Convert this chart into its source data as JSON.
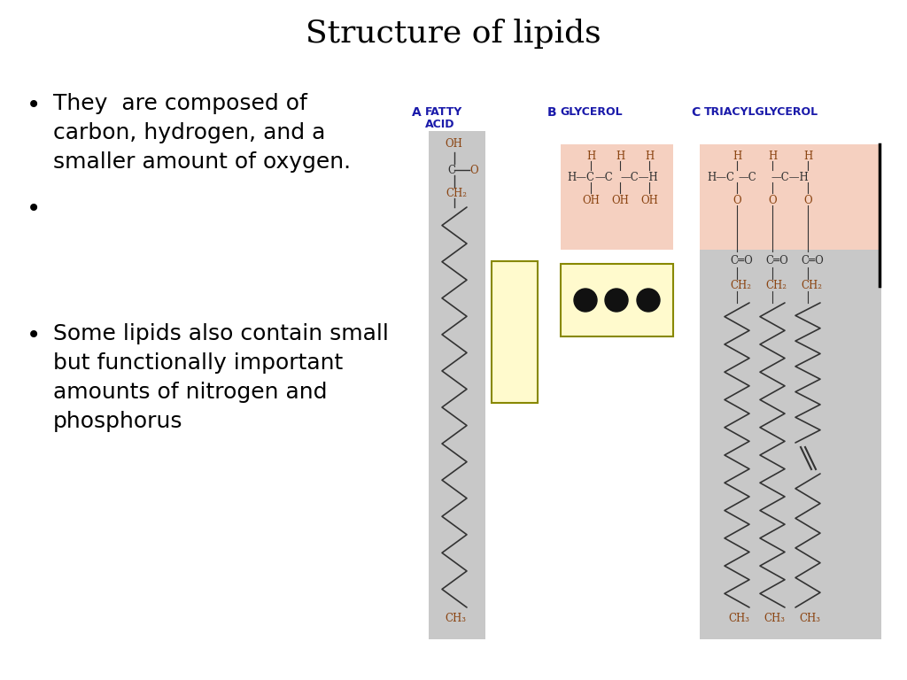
{
  "title": "Structure of lipids",
  "title_fontsize": 26,
  "background_color": "#ffffff",
  "label_color": "#1a1aaa",
  "brown_color": "#8b4513",
  "dark_color": "#333333",
  "fatty_acid_bg": "#c8c8c8",
  "glycerol_head_bg": "#f5d0c0",
  "triacyl_tail_bg": "#c8c8c8",
  "symbol_box_bg": "#fffacd",
  "symbol_box_border": "#888800",
  "bullet1_lines": [
    "They  are composed of",
    "carbon, hydrogen, and a",
    "smaller amount of oxygen."
  ],
  "bullet2_lines": [
    "Some lipids also contain small",
    "but functionally important",
    "amounts of nitrogen and",
    "phosphorus"
  ],
  "bullet_fontsize": 18,
  "mol_fontsize": 8.5,
  "label_fontsize": 9
}
